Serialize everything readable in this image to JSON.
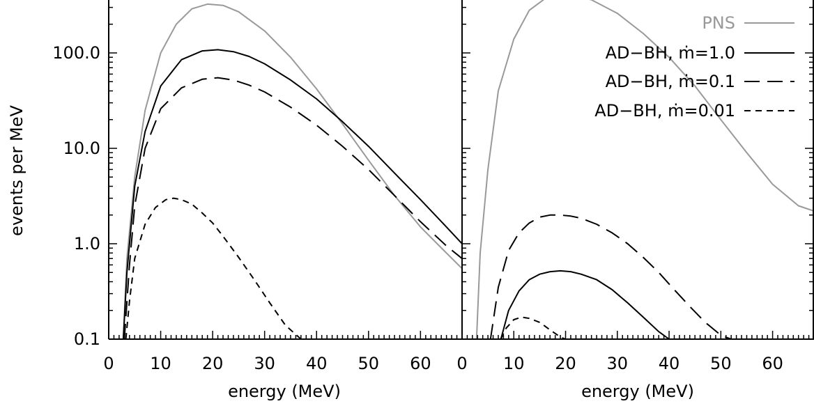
{
  "figure": {
    "ylabel": "events per MeV",
    "xlabel": "energy (MeV)"
  },
  "colors": {
    "pns": "#999999",
    "adbh": "#000000"
  },
  "chart_data": [
    {
      "type": "line",
      "panel": "left",
      "xlabel": "energy (MeV)",
      "ylabel": "events per MeV",
      "xlim": [
        0,
        68
      ],
      "ylim": [
        0.1,
        350
      ],
      "yscale": "log",
      "xticks": [
        "0",
        "10",
        "20",
        "30",
        "40",
        "50",
        "60"
      ],
      "yticks": [
        "0.1",
        "1.0",
        "10.0",
        "100.0"
      ],
      "series": [
        {
          "name": "PNS",
          "style": "solid",
          "color": "#999999",
          "x": [
            2.8,
            3.5,
            5,
            7,
            10,
            13,
            16,
            19,
            22,
            25,
            30,
            35,
            40,
            45,
            50,
            55,
            60,
            65,
            68
          ],
          "y": [
            0.1,
            0.7,
            5,
            25,
            100,
            200,
            290,
            325,
            315,
            270,
            170,
            90,
            42,
            18,
            7.5,
            3.2,
            1.5,
            0.8,
            0.55
          ]
        },
        {
          "name": "AD−BH, ṁ=1.0",
          "style": "solid",
          "color": "#000000",
          "x": [
            2.8,
            3.5,
            5,
            7,
            10,
            14,
            18,
            21,
            24,
            27,
            30,
            35,
            40,
            45,
            50,
            55,
            60,
            65,
            68
          ],
          "y": [
            0.1,
            0.5,
            4,
            15,
            45,
            85,
            105,
            108,
            103,
            92,
            77,
            52,
            33,
            19,
            10.5,
            5.5,
            2.9,
            1.5,
            1.0
          ]
        },
        {
          "name": "AD−BH, ṁ=0.1",
          "style": "long-dash",
          "color": "#000000",
          "x": [
            3.0,
            4,
            5,
            7,
            10,
            14,
            18,
            21,
            24,
            27,
            30,
            35,
            40,
            45,
            50,
            55,
            60,
            65,
            68
          ],
          "y": [
            0.1,
            0.6,
            2.5,
            10,
            26,
            43,
            53,
            55,
            52,
            46,
            39,
            27,
            17.5,
            10.5,
            6,
            3.2,
            1.7,
            0.95,
            0.7
          ]
        },
        {
          "name": "AD−BH, ṁ=0.01",
          "style": "short-dash",
          "color": "#000000",
          "x": [
            3.3,
            4,
            5,
            7,
            9,
            11,
            12.5,
            14,
            16,
            18,
            20,
            22,
            25,
            28,
            31,
            34,
            37
          ],
          "y": [
            0.1,
            0.25,
            0.7,
            1.6,
            2.4,
            2.9,
            3.0,
            2.9,
            2.6,
            2.1,
            1.65,
            1.2,
            0.72,
            0.42,
            0.24,
            0.14,
            0.1
          ]
        }
      ]
    },
    {
      "type": "line",
      "panel": "right",
      "xlabel": "energy (MeV)",
      "xlim": [
        0,
        68
      ],
      "ylim": [
        0.1,
        350
      ],
      "yscale": "log",
      "xticks": [
        "0",
        "10",
        "20",
        "30",
        "40",
        "50",
        "60"
      ],
      "series": [
        {
          "name": "PNS",
          "style": "solid",
          "color": "#999999",
          "x": [
            2.8,
            3.5,
            5,
            7,
            10,
            13,
            16,
            19,
            22,
            25,
            30,
            35,
            40,
            45,
            50,
            55,
            60,
            65,
            68
          ],
          "y": [
            0.1,
            0.8,
            6,
            40,
            140,
            280,
            370,
            400,
            395,
            360,
            260,
            160,
            90,
            45,
            20,
            9,
            4.2,
            2.5,
            2.2
          ]
        },
        {
          "name": "AD−BH, ṁ=1.0",
          "style": "solid",
          "color": "#000000",
          "x": [
            7.5,
            9,
            11,
            13,
            15,
            17,
            19,
            21,
            23,
            26,
            29,
            32,
            35,
            38,
            40
          ],
          "y": [
            0.1,
            0.2,
            0.32,
            0.42,
            0.48,
            0.51,
            0.52,
            0.51,
            0.48,
            0.42,
            0.33,
            0.24,
            0.17,
            0.12,
            0.1
          ]
        },
        {
          "name": "AD−BH, ṁ=0.1",
          "style": "long-dash",
          "color": "#000000",
          "x": [
            5.5,
            7,
            9,
            11,
            13,
            15,
            17,
            19,
            21,
            23,
            26,
            29,
            32,
            35,
            38,
            41,
            44,
            47,
            50,
            52
          ],
          "y": [
            0.1,
            0.35,
            0.85,
            1.3,
            1.65,
            1.9,
            2.0,
            2.0,
            1.95,
            1.85,
            1.6,
            1.3,
            1.0,
            0.72,
            0.5,
            0.33,
            0.22,
            0.15,
            0.11,
            0.1
          ]
        },
        {
          "name": "AD−BH, ṁ=0.01",
          "style": "short-dash",
          "color": "#000000",
          "x": [
            7.5,
            8.5,
            10,
            11.5,
            13,
            15,
            17,
            19,
            20
          ],
          "y": [
            0.1,
            0.13,
            0.16,
            0.17,
            0.165,
            0.15,
            0.125,
            0.105,
            0.1
          ]
        }
      ],
      "legend": {
        "placement": "top-right",
        "entries": [
          {
            "label": "PNS",
            "style": "solid",
            "color": "#999999"
          },
          {
            "label": "AD−BH, ṁ=1.0",
            "style": "solid",
            "color": "#000000"
          },
          {
            "label": "AD−BH, ṁ=0.1",
            "style": "long-dash",
            "color": "#000000"
          },
          {
            "label": "AD−BH, ṁ=0.01",
            "style": "short-dash",
            "color": "#000000"
          }
        ]
      }
    }
  ]
}
